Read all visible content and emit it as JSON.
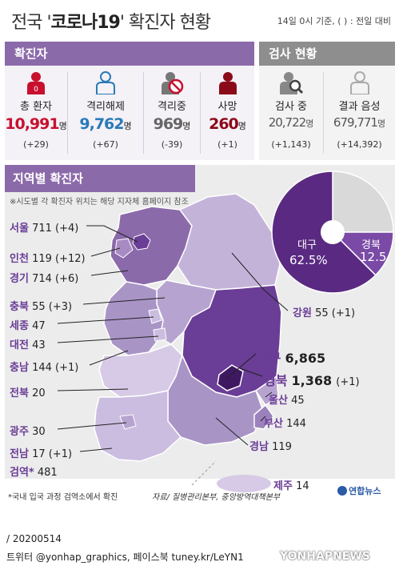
{
  "header": {
    "title_pre": "전국 '",
    "title_em": "코로나19",
    "title_post": "' 확진자 현황",
    "note": "14일 0시 기준, ( ) : 전일 대비"
  },
  "confirmed_section": {
    "title": "확진자",
    "items": [
      {
        "label": "총 환자",
        "value": "10,991",
        "unit": "명",
        "change": "(+29)",
        "icon": "person-red-icon",
        "color": "#c8102e"
      },
      {
        "label": "격리해제",
        "value": "9,762",
        "unit": "명",
        "change": "(+67)",
        "icon": "person-outline-blue-icon",
        "color": "#2a7ab8"
      },
      {
        "label": "격리중",
        "value": "969",
        "unit": "명",
        "change": "(-39)",
        "icon": "person-blocked-icon",
        "color": "#888888"
      },
      {
        "label": "사망",
        "value": "260",
        "unit": "명",
        "change": "(+1)",
        "icon": "person-darkred-icon",
        "color": "#8b0a1a"
      }
    ]
  },
  "test_section": {
    "title": "검사 현황",
    "items": [
      {
        "label": "검사 중",
        "value": "20,722",
        "unit": "명",
        "change": "(+1,143)",
        "icon": "person-search-icon"
      },
      {
        "label": "결과 음성",
        "value": "679,771",
        "unit": "명",
        "change": "(+14,392)",
        "icon": "person-outline-gray-icon"
      }
    ]
  },
  "regional": {
    "title": "지역별 확진자",
    "note": "※시도별 각 확진자 위치는 해당 지자체 홈페이지 참조",
    "regions": [
      {
        "name": "서울",
        "count": "711",
        "change": "(+4)"
      },
      {
        "name": "인천",
        "count": "119",
        "change": "(+12)"
      },
      {
        "name": "경기",
        "count": "714",
        "change": "(+6)"
      },
      {
        "name": "충북",
        "count": "55",
        "change": "(+3)"
      },
      {
        "name": "세종",
        "count": "47",
        "change": ""
      },
      {
        "name": "대전",
        "count": "43",
        "change": ""
      },
      {
        "name": "충남",
        "count": "144",
        "change": "(+1)"
      },
      {
        "name": "전북",
        "count": "20",
        "change": ""
      },
      {
        "name": "광주",
        "count": "30",
        "change": ""
      },
      {
        "name": "전남",
        "count": "17",
        "change": "(+1)"
      },
      {
        "name": "검역*",
        "count": "481",
        "change": ""
      },
      {
        "name": "강원",
        "count": "55",
        "change": "(+1)"
      },
      {
        "name": "대구",
        "count": "6,865",
        "change": ""
      },
      {
        "name": "경북",
        "count": "1,368",
        "change": "(+1)"
      },
      {
        "name": "울산",
        "count": "45",
        "change": ""
      },
      {
        "name": "부산",
        "count": "144",
        "change": ""
      },
      {
        "name": "경남",
        "count": "119",
        "change": ""
      },
      {
        "name": "제주",
        "count": "14",
        "change": ""
      }
    ],
    "pie": {
      "slices": [
        {
          "name": "대구",
          "value": 62.5,
          "label": "62.5%",
          "color": "#5a2a82"
        },
        {
          "name": "경북",
          "value": 12.5,
          "label": "12.5",
          "color": "#7a4aa6"
        },
        {
          "name": "",
          "value": 25.0,
          "label": "",
          "color": "#d9d9d9"
        }
      ]
    }
  },
  "footer": {
    "quarantine_note": "*국내 입국 과정 검역소에서 확진",
    "source": "자료/ 질병관리본부, 중앙방역대책본부",
    "logo": "연합뉴스",
    "date": "/ 20200514",
    "sns": "트위터 @yonhap_graphics, 페이스북 tuney.kr/LeYN1",
    "watermark": "YONHAPNEWS"
  }
}
